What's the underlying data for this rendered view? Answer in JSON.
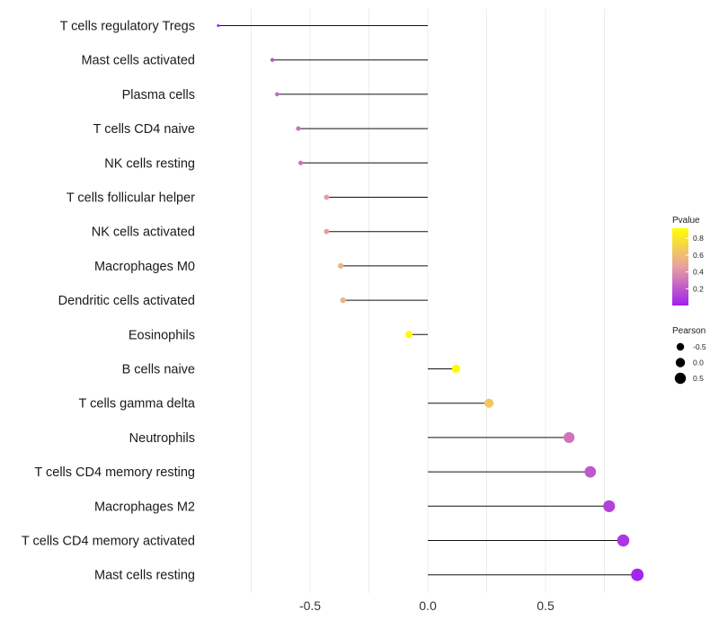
{
  "chart_data": {
    "type": "lollipop",
    "title": "",
    "xlabel": "",
    "ylabel": "",
    "xlim": [
      -0.92,
      0.92
    ],
    "x_ticks": [
      -0.5,
      0.0,
      0.5
    ],
    "x_tick_labels": [
      "-0.5",
      "0.0",
      "0.5"
    ],
    "grid": true,
    "categories": [
      "T cells regulatory  Tregs",
      "Mast cells activated",
      "Plasma cells",
      "T cells CD4 naive",
      "NK cells resting",
      "T cells follicular helper",
      "NK cells activated",
      "Macrophages M0",
      "Dendritic cells activated",
      "Eosinophils",
      "B cells naive",
      "T cells gamma delta",
      "Neutrophils",
      "T cells CD4 memory resting",
      "Macrophages M2",
      "T cells CD4 memory activated",
      "Mast cells resting"
    ],
    "pearson": [
      -0.89,
      -0.66,
      -0.64,
      -0.55,
      -0.54,
      -0.43,
      -0.43,
      -0.37,
      -0.36,
      -0.08,
      0.12,
      0.26,
      0.6,
      0.69,
      0.77,
      0.83,
      0.89
    ],
    "pvalue": [
      0.01,
      0.2,
      0.25,
      0.3,
      0.3,
      0.45,
      0.45,
      0.55,
      0.55,
      0.9,
      0.9,
      0.65,
      0.3,
      0.2,
      0.12,
      0.08,
      0.02
    ],
    "legends": {
      "color": {
        "title": "Pvalue",
        "labels": [
          "0.8",
          "0.6",
          "0.4",
          "0.2"
        ],
        "values": [
          0.8,
          0.6,
          0.4,
          0.2
        ],
        "range": [
          0.0,
          0.92
        ],
        "low_color": "#a020f0",
        "mid_color": "#e8a0a0",
        "high_color": "#ffff00",
        "placement": "right"
      },
      "size": {
        "title": "Pearson",
        "labels": [
          "-0.5",
          "0.0",
          "0.5"
        ],
        "values": [
          -0.5,
          0.0,
          0.5
        ],
        "placement": "right"
      }
    },
    "stem_color": "#111111",
    "grid_color": "#ececec"
  }
}
